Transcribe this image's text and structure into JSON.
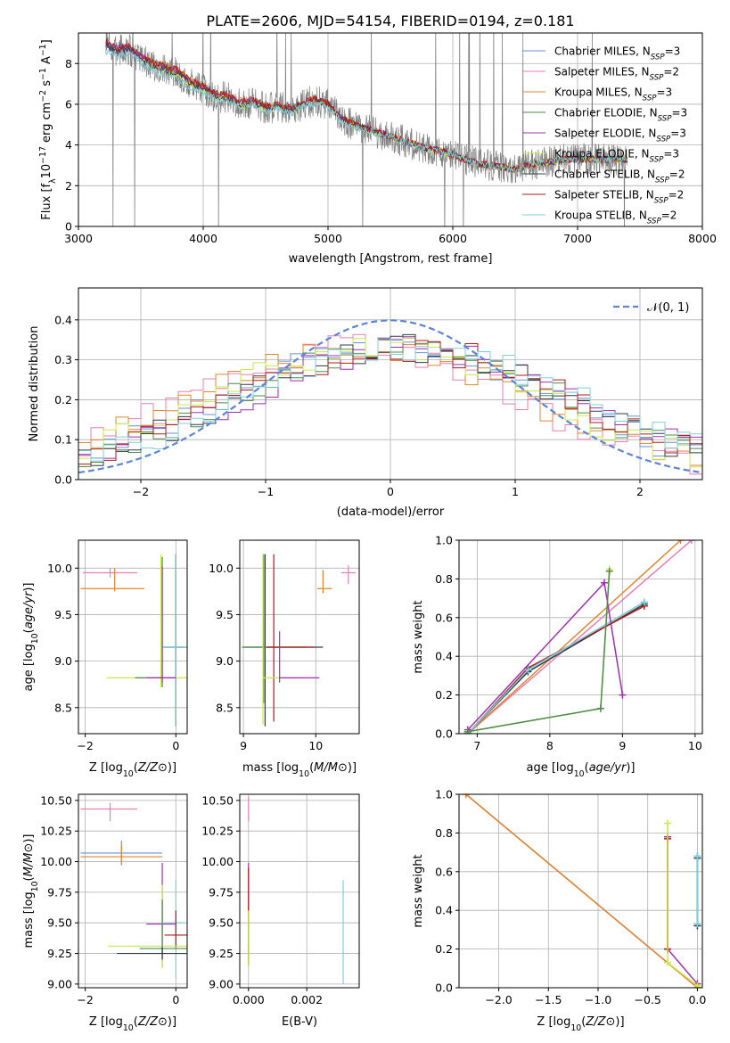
{
  "figure": {
    "title": "PLATE=2606, MJD=54154, FIBERID=0194, z=0.181"
  },
  "models": [
    {
      "name": "Chabrier MILES, N_SSP=3",
      "color": "#6a8fd6"
    },
    {
      "name": "Salpeter MILES, N_SSP=2",
      "color": "#e87fb4"
    },
    {
      "name": "Kroupa MILES, N_SSP=3",
      "color": "#e0862f"
    },
    {
      "name": "Chabrier ELODIE, N_SSP=3",
      "color": "#4e8a4e"
    },
    {
      "name": "Salpeter ELODIE, N_SSP=3",
      "color": "#a02fb0"
    },
    {
      "name": "Kroupa ELODIE, N_SSP=3",
      "color": "#c9e84a"
    },
    {
      "name": "Chabrier STELIB, N_SSP=2",
      "color": "#2f3b4a"
    },
    {
      "name": "Salpeter STELIB, N_SSP=2",
      "color": "#b01a1a"
    },
    {
      "name": "Kroupa STELIB, N_SSP=2",
      "color": "#7fd0d8"
    }
  ],
  "chart_data": [
    {
      "type": "line",
      "panel": "spectrum",
      "title": "PLATE=2606, MJD=54154, FIBERID=0194, z=0.181",
      "xlabel": "wavelength [Angstrom, rest frame]",
      "ylabel": "Flux [f_λ 10^-17 erg cm^-2 s^-1 A^-1]",
      "xlim": [
        3000,
        8000
      ],
      "ylim": [
        0,
        9.5
      ],
      "xticks": [
        3000,
        4000,
        5000,
        6000,
        7000,
        8000
      ],
      "yticks": [
        0,
        2,
        4,
        6,
        8
      ],
      "grid": true,
      "legend": "top-right",
      "data_color": "#808080",
      "model_curve": {
        "x": [
          3220,
          3300,
          3400,
          3500,
          3600,
          3700,
          3800,
          3900,
          4000,
          4100,
          4200,
          4300,
          4400,
          4500,
          4600,
          4700,
          4800,
          4900,
          5000,
          5100,
          5200,
          5300,
          5400,
          5500,
          5600,
          5700,
          5800,
          5900,
          6000,
          6100,
          6200,
          6300,
          6400,
          6500,
          6600,
          6700,
          6800,
          6900,
          7000,
          7100,
          7200,
          7300,
          7400
        ],
        "y": [
          8.9,
          8.6,
          8.7,
          8.3,
          7.9,
          7.7,
          7.5,
          7.0,
          6.8,
          6.4,
          6.3,
          6.0,
          6.1,
          5.8,
          5.9,
          5.7,
          6.0,
          6.2,
          6.0,
          5.3,
          5.0,
          4.8,
          4.6,
          4.4,
          4.2,
          4.0,
          3.8,
          3.7,
          3.5,
          3.3,
          3.1,
          3.0,
          2.9,
          2.8,
          3.0,
          3.1,
          3.2,
          3.3,
          3.3,
          3.3,
          3.3,
          3.3,
          3.3
        ]
      },
      "model_offsets": [
        0.0,
        0.05,
        0.25,
        0.1,
        0.15,
        -0.1,
        0.0,
        0.2,
        -0.3
      ]
    },
    {
      "type": "histogram",
      "panel": "residuals",
      "xlabel": "(data-model)/error",
      "ylabel": "Normed distribution",
      "xlim": [
        -2.5,
        2.5
      ],
      "ylim": [
        0,
        0.48
      ],
      "xticks": [
        -2,
        -1,
        0,
        1,
        2
      ],
      "yticks": [
        0.0,
        0.1,
        0.2,
        0.3,
        0.4
      ],
      "grid": true,
      "legend": "top-right",
      "reference_curve": {
        "name": "𝒩(0, 1)",
        "color": "#5b86d6",
        "style": "dashed"
      },
      "bin_width": 0.1,
      "model_offsets": [
        0.0,
        -0.3,
        -0.25,
        0.05,
        0.15,
        -0.12,
        0.08,
        0.12,
        0.18
      ]
    },
    {
      "type": "errorbar",
      "panel": "age-vs-Z",
      "xlabel": "Z [log10(Z/Z⊙)]",
      "ylabel": "age [log10(age/yr)]",
      "xlim": [
        -2.15,
        0.25
      ],
      "ylim": [
        8.22,
        10.3
      ],
      "xticks": [
        -2,
        0
      ],
      "yticks": [
        8.5,
        9.0,
        9.5,
        10.0
      ],
      "grid": true,
      "points": [
        {
          "model": 1,
          "x": -1.45,
          "y": 9.95,
          "xerr": [
            0.6,
            0.6
          ],
          "yerr": [
            0.05,
            0.05
          ]
        },
        {
          "model": 2,
          "x": -1.35,
          "y": 9.78,
          "xerr": [
            0.75,
            0.65
          ],
          "yerr": [
            0.03,
            0.22
          ]
        },
        {
          "model": 0,
          "x": 0.0,
          "y": 9.15,
          "xerr": [
            0.25,
            0.25
          ],
          "yerr": [
            0.85,
            1.0
          ]
        },
        {
          "model": 6,
          "x": 0.0,
          "y": 9.15,
          "xerr": [
            0.3,
            0.2
          ],
          "yerr": [
            0.85,
            1.0
          ]
        },
        {
          "model": 8,
          "x": 0.0,
          "y": 9.15,
          "xerr": [
            0.3,
            0.25
          ],
          "yerr": [
            0.85,
            1.0
          ]
        },
        {
          "model": 5,
          "x": -0.33,
          "y": 8.82,
          "xerr": [
            1.2,
            0.6
          ],
          "yerr": [
            0.1,
            1.33
          ]
        },
        {
          "model": 3,
          "x": -0.3,
          "y": 8.82,
          "xerr": [
            0.6,
            0.3
          ],
          "yerr": [
            0.1,
            1.3
          ]
        },
        {
          "model": 4,
          "x": -0.3,
          "y": 8.82,
          "xerr": [
            0.35,
            0.3
          ],
          "yerr": [
            0.05,
            1.2
          ]
        }
      ]
    },
    {
      "type": "errorbar",
      "panel": "age-vs-mass",
      "xlabel": "mass [log10(M/M⊙)]",
      "ylabel": "",
      "xlim": [
        8.95,
        10.6
      ],
      "ylim": [
        8.22,
        10.3
      ],
      "xticks": [
        9,
        10
      ],
      "yticks": [
        8.5,
        9.0,
        9.5,
        10.0
      ],
      "grid": true,
      "points": [
        {
          "model": 1,
          "x": 10.45,
          "y": 9.95,
          "xerr": [
            0.1,
            0.1
          ],
          "yerr": [
            0.12,
            0.08
          ]
        },
        {
          "model": 2,
          "x": 10.1,
          "y": 9.78,
          "xerr": [
            0.08,
            0.12
          ],
          "yerr": [
            0.05,
            0.2
          ]
        },
        {
          "model": 6,
          "x": 9.3,
          "y": 9.15,
          "xerr": [
            0.3,
            0.8
          ],
          "yerr": [
            0.85,
            1.0
          ]
        },
        {
          "model": 3,
          "x": 9.28,
          "y": 9.15,
          "xerr": [
            0.3,
            0.6
          ],
          "yerr": [
            0.6,
            1.0
          ]
        },
        {
          "model": 7,
          "x": 9.42,
          "y": 9.15,
          "xerr": [
            0.1,
            0.55
          ],
          "yerr": [
            0.8,
            1.0
          ]
        },
        {
          "model": 5,
          "x": 9.27,
          "y": 8.82,
          "xerr": [
            0.0,
            0.55
          ],
          "yerr": [
            0.5,
            1.33
          ]
        },
        {
          "model": 4,
          "x": 9.5,
          "y": 8.82,
          "xerr": [
            0.0,
            0.55
          ],
          "yerr": [
            0.05,
            0.5
          ]
        }
      ]
    },
    {
      "type": "line",
      "panel": "massweight-vs-age",
      "xlabel": "age [log10(age/yr)]",
      "ylabel": "mass weight",
      "xlim": [
        6.75,
        10.1
      ],
      "ylim": [
        0,
        1.0
      ],
      "xticks": [
        7,
        8,
        9,
        10
      ],
      "yticks": [
        0.0,
        0.2,
        0.4,
        0.6,
        0.8,
        1.0
      ],
      "grid": true,
      "series": [
        {
          "model": 1,
          "x": [
            6.87,
            9.95
          ],
          "y": [
            0.0,
            1.0
          ]
        },
        {
          "model": 2,
          "x": [
            6.87,
            9.8
          ],
          "y": [
            0.0,
            1.0
          ]
        },
        {
          "model": 0,
          "x": [
            6.87,
            7.7,
            9.3
          ],
          "y": [
            0.0,
            0.33,
            0.68
          ]
        },
        {
          "model": 6,
          "x": [
            6.87,
            7.7,
            9.3
          ],
          "y": [
            0.0,
            0.32,
            0.67
          ]
        },
        {
          "model": 7,
          "x": [
            6.87,
            7.7,
            9.3
          ],
          "y": [
            0.0,
            0.34,
            0.66
          ]
        },
        {
          "model": 8,
          "x": [
            6.87,
            7.7,
            9.3
          ],
          "y": [
            0.0,
            0.33,
            0.68
          ]
        },
        {
          "model": 4,
          "x": [
            6.87,
            8.75,
            9.0
          ],
          "y": [
            0.02,
            0.78,
            0.2
          ]
        },
        {
          "model": 5,
          "x": [
            6.87,
            8.7,
            8.82
          ],
          "y": [
            0.01,
            0.13,
            0.85
          ]
        },
        {
          "model": 3,
          "x": [
            6.87,
            8.7,
            8.82
          ],
          "y": [
            0.01,
            0.13,
            0.84
          ]
        }
      ]
    },
    {
      "type": "errorbar",
      "panel": "mass-vs-Z",
      "xlabel": "Z [log10(Z/Z⊙)]",
      "ylabel": "mass [log10(M/M⊙)]",
      "xlim": [
        -2.15,
        0.25
      ],
      "ylim": [
        8.97,
        10.55
      ],
      "xticks": [
        -2,
        0
      ],
      "yticks": [
        9.0,
        9.25,
        9.5,
        9.75,
        10.0,
        10.25,
        10.5
      ],
      "grid": true,
      "points": [
        {
          "model": 1,
          "x": -1.45,
          "y": 10.43,
          "xerr": [
            0.65,
            0.6
          ],
          "yerr": [
            0.1,
            0.05
          ]
        },
        {
          "model": 0,
          "x": -1.2,
          "y": 10.07,
          "xerr": [
            0.9,
            0.9
          ],
          "yerr": [
            0.1,
            0.1
          ]
        },
        {
          "model": 2,
          "x": -1.2,
          "y": 10.04,
          "xerr": [
            0.9,
            0.9
          ],
          "yerr": [
            0.05,
            0.1
          ]
        },
        {
          "model": 8,
          "x": 0.0,
          "y": 9.5,
          "xerr": [
            0.3,
            0.2
          ],
          "yerr": [
            0.45,
            0.35
          ]
        },
        {
          "model": 7,
          "x": 0.0,
          "y": 9.4,
          "xerr": [
            0.25,
            0.3
          ],
          "yerr": [
            0.1,
            0.2
          ]
        },
        {
          "model": 4,
          "x": -0.3,
          "y": 9.49,
          "xerr": [
            0.35,
            0.3
          ],
          "yerr": [
            0.35,
            0.5
          ]
        },
        {
          "model": 5,
          "x": -0.3,
          "y": 9.31,
          "xerr": [
            1.2,
            0.6
          ],
          "yerr": [
            0.18,
            0.5
          ]
        },
        {
          "model": 3,
          "x": -0.3,
          "y": 9.29,
          "xerr": [
            0.5,
            0.55
          ],
          "yerr": [
            0.05,
            0.4
          ]
        },
        {
          "model": 6,
          "x": -0.3,
          "y": 9.25,
          "xerr": [
            1.0,
            0.6
          ],
          "yerr": [
            0.05,
            0.05
          ]
        }
      ]
    },
    {
      "type": "errorbar",
      "panel": "mass-vs-EBV",
      "xlabel": "E(B-V)",
      "ylabel": "",
      "xlim": [
        -0.0003,
        0.0038
      ],
      "ylim": [
        8.97,
        10.55
      ],
      "xticks": [
        0.0,
        0.002
      ],
      "xticklabels": [
        "0.000",
        "0.002"
      ],
      "yticks": [
        9.0,
        9.25,
        9.5,
        9.75,
        10.0,
        10.25,
        10.5
      ],
      "grid": true,
      "points": [
        {
          "model": 1,
          "x": 0.0,
          "y": 10.43,
          "xerr": [
            0,
            0
          ],
          "yerr": [
            0.1,
            0.1
          ]
        },
        {
          "model": 4,
          "x": 0.0,
          "y": 9.49,
          "xerr": [
            0,
            0
          ],
          "yerr": [
            0.3,
            0.5
          ]
        },
        {
          "model": 7,
          "x": 0.0,
          "y": 9.45,
          "xerr": [
            0,
            0
          ],
          "yerr": [
            0.3,
            0.5
          ]
        },
        {
          "model": 5,
          "x": 0.0,
          "y": 9.3,
          "xerr": [
            0,
            0
          ],
          "yerr": [
            0.15,
            0.3
          ]
        },
        {
          "model": 8,
          "x": 0.00325,
          "y": 9.45,
          "xerr": [
            0,
            0
          ],
          "yerr": [
            0.45,
            0.4
          ]
        }
      ]
    },
    {
      "type": "line",
      "panel": "massweight-vs-Z",
      "xlabel": "Z [log10(Z/Z⊙)]",
      "ylabel": "mass weight",
      "xlim": [
        -2.4,
        0.05
      ],
      "ylim": [
        0,
        1.0
      ],
      "xticks": [
        -2.0,
        -1.5,
        -1.0,
        -0.5,
        0.0
      ],
      "yticks": [
        0.0,
        0.2,
        0.4,
        0.6,
        0.8,
        1.0
      ],
      "grid": true,
      "series": [
        {
          "model": 1,
          "x": [
            -2.33,
            0.0
          ],
          "y": [
            1.0,
            0.0
          ]
        },
        {
          "model": 2,
          "x": [
            -2.33,
            0.0
          ],
          "y": [
            1.0,
            0.0
          ]
        },
        {
          "model": 4,
          "x": [
            -0.3,
            -0.3,
            0.0
          ],
          "y": [
            0.78,
            0.2,
            0.02
          ]
        },
        {
          "model": 7,
          "x": [
            -0.3,
            -0.3
          ],
          "y": [
            0.77,
            0.2
          ]
        },
        {
          "model": 5,
          "x": [
            -0.3,
            -0.3,
            0.0
          ],
          "y": [
            0.85,
            0.13,
            0.01
          ]
        },
        {
          "model": 0,
          "x": [
            0.0,
            0.0
          ],
          "y": [
            0.68,
            0.33
          ]
        },
        {
          "model": 6,
          "x": [
            0.0,
            0.0
          ],
          "y": [
            0.67,
            0.32
          ]
        },
        {
          "model": 8,
          "x": [
            0.0,
            0.0
          ],
          "y": [
            0.68,
            0.33
          ]
        }
      ]
    }
  ]
}
